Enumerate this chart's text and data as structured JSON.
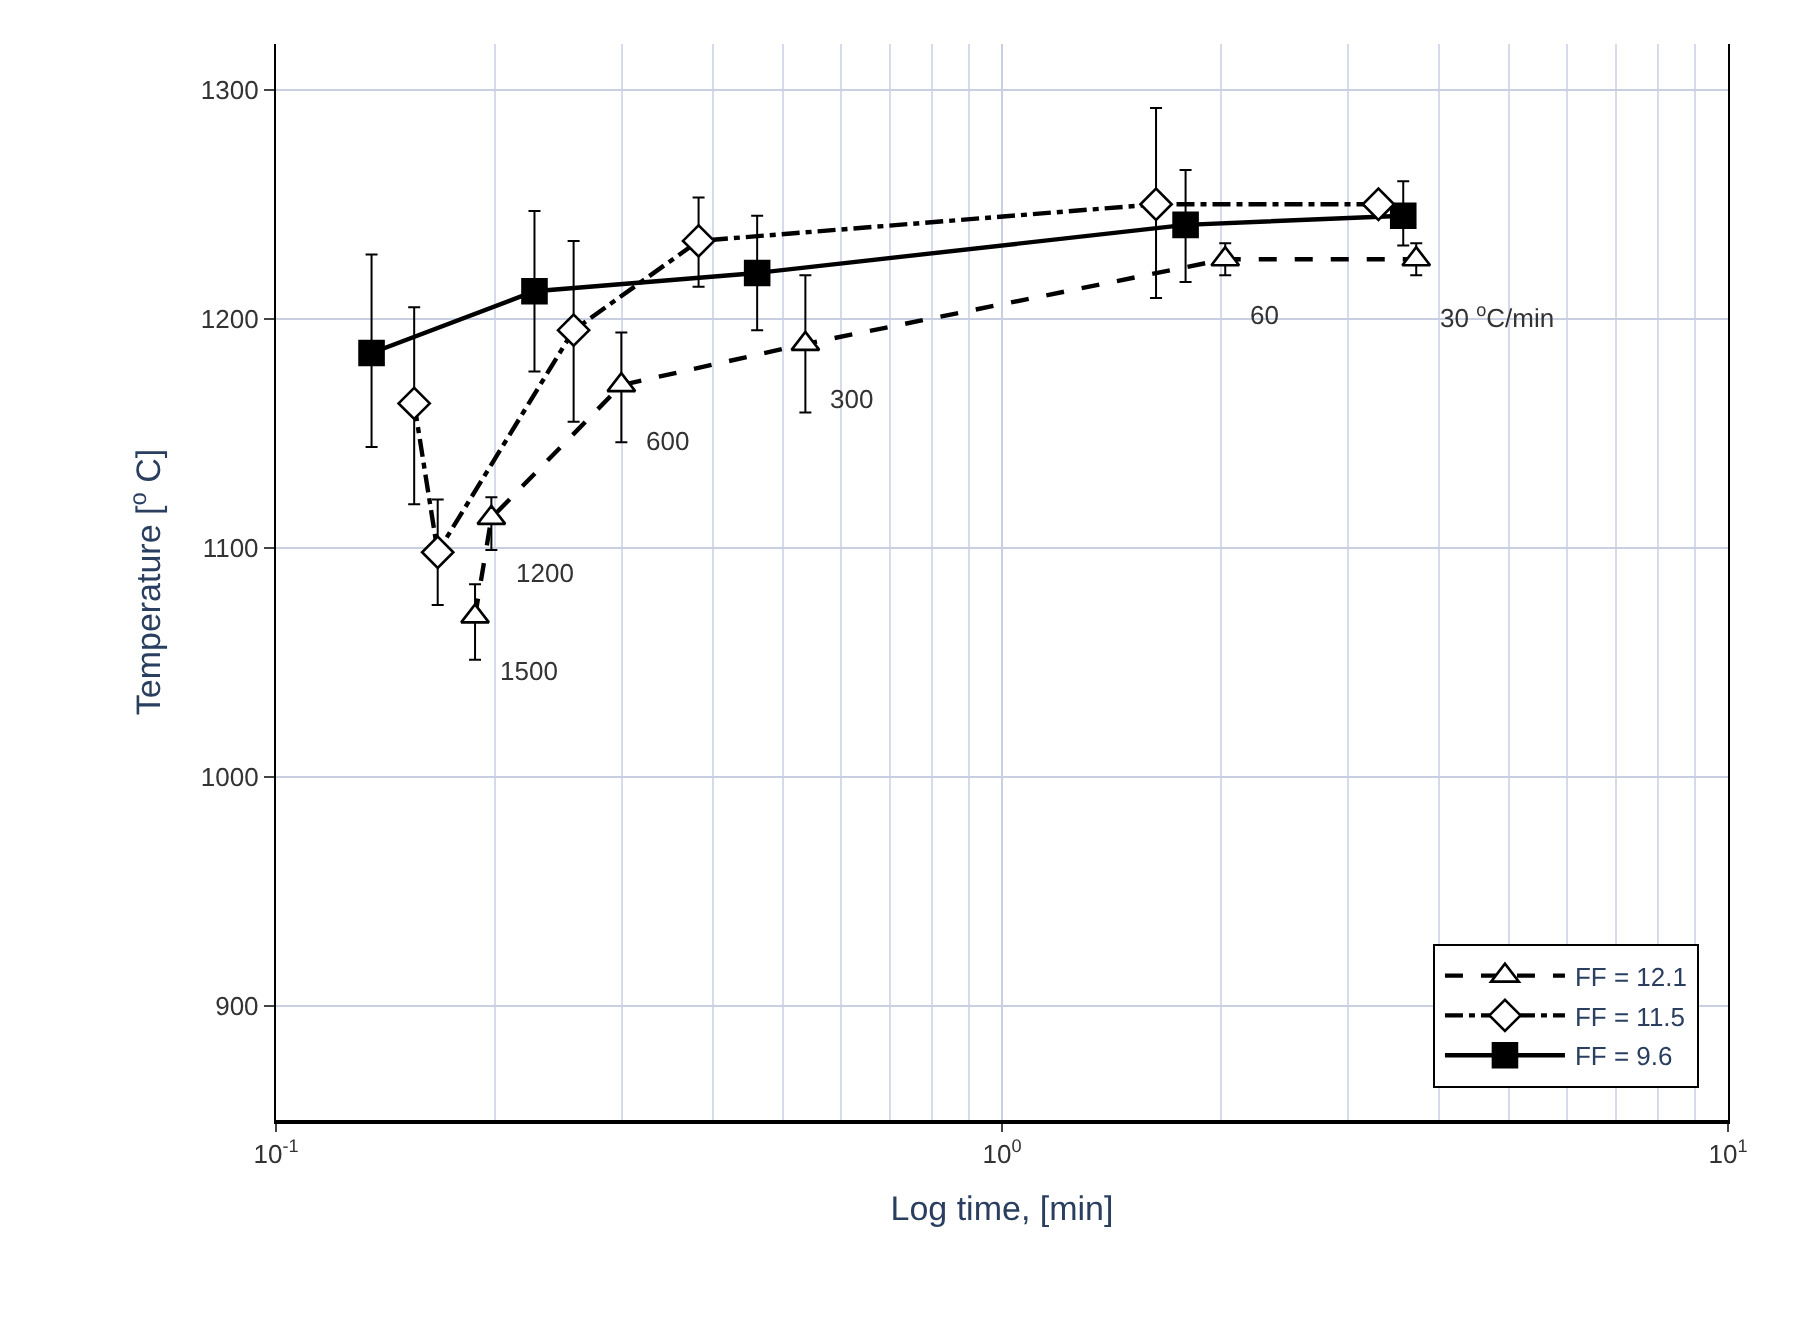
{
  "chart_data": {
    "type": "line",
    "xlabel": "Log time, [min]",
    "ylabel": "Temperature [$^{o}$ C]",
    "log": "x",
    "grid": true,
    "legend": "bottom right",
    "xlim": [
      0.1,
      10
    ],
    "xticks": [
      {
        "value": 0.1,
        "label": "10$^{-1}$"
      },
      {
        "value": 1,
        "label": "10$^{0}$"
      },
      {
        "value": 10,
        "label": "10$^{1}$"
      }
    ],
    "ylim": [
      850,
      1320
    ],
    "yticks": [
      900,
      1000,
      1100,
      1200,
      1300
    ],
    "series": [
      {
        "name": "FF = 12.1",
        "color": "#000000",
        "marker": "triangle",
        "line_style": "dashed",
        "x": [
          0.188,
          0.198,
          0.299,
          0.536,
          2.03,
          3.72
        ],
        "values": [
          1070,
          1113,
          1171,
          1189,
          1226,
          1226
        ],
        "errors": [
          [
            1051,
            1084
          ],
          [
            1099,
            1122
          ],
          [
            1146,
            1194
          ],
          [
            1159,
            1219
          ],
          [
            1219,
            1233
          ],
          [
            1219,
            1233
          ]
        ]
      },
      {
        "name": "FF = 11.5",
        "color": "#000000",
        "marker": "diamond",
        "line_style": "dashdot",
        "x": [
          0.155,
          0.167,
          0.257,
          0.382,
          1.63,
          3.3
        ],
        "values": [
          1163,
          1098,
          1195,
          1234,
          1250,
          1250
        ],
        "errors": [
          [
            1119,
            1205
          ],
          [
            1075,
            1121
          ],
          [
            1155,
            1234
          ],
          [
            1214,
            1253
          ],
          [
            1209,
            1292
          ],
          null
        ]
      },
      {
        "name": "FF = 9.6",
        "color": "#000000",
        "marker": "square",
        "line_style": "solid",
        "x": [
          0.1354,
          0.227,
          0.46,
          1.79,
          3.57
        ],
        "values": [
          1185,
          1212,
          1220,
          1241,
          1245
        ],
        "errors": [
          [
            1144,
            1228
          ],
          [
            1177,
            1247
          ],
          [
            1195,
            1245
          ],
          [
            1216,
            1265
          ],
          [
            1232,
            1260
          ]
        ]
      }
    ],
    "annotations": [
      {
        "text": "1500",
        "x": 0.188,
        "y": 1070
      },
      {
        "text": "1200",
        "x": 0.198,
        "y": 1113
      },
      {
        "text": "600",
        "x": 0.299,
        "y": 1171
      },
      {
        "text": "300",
        "x": 0.536,
        "y": 1189
      },
      {
        "text": "60",
        "x": 2.03,
        "y": 1226
      },
      {
        "text": "30 $^{o}$C/min",
        "x": 3.72,
        "y": 1226
      }
    ]
  }
}
